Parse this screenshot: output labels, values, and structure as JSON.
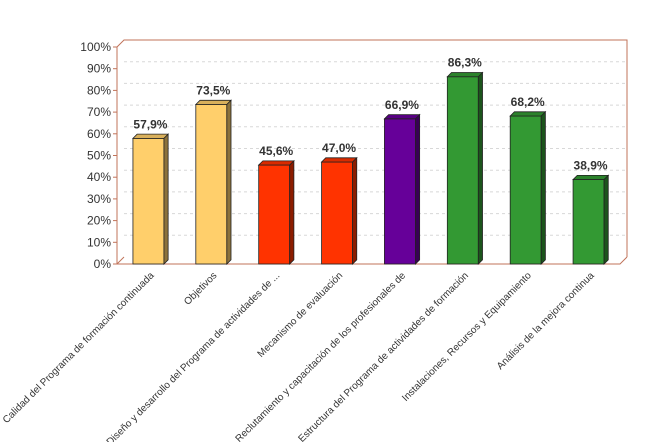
{
  "chart_data": {
    "type": "bar",
    "title": "",
    "xlabel": "",
    "ylabel": "",
    "ylim": [
      0,
      100
    ],
    "yticks": [
      "0%",
      "10%",
      "20%",
      "30%",
      "40%",
      "50%",
      "60%",
      "70%",
      "80%",
      "90%",
      "100%"
    ],
    "grid": true,
    "categories": [
      "Calidad del Programa de formación continuada",
      "Objetivos",
      "Diseño y desarrollo del Programa de actividades de ...",
      "Mecanismo de evaluación",
      "Reclutamiento y capacitación de los profesionales de",
      "Estructura del Programa de actividades de formación",
      "Instalaciones, Recursos y Equipamiento",
      "Análisis de la mejora continua"
    ],
    "values": [
      57.9,
      73.5,
      45.6,
      47.0,
      66.9,
      86.3,
      68.2,
      38.9
    ],
    "value_labels": [
      "57,9%",
      "73,5%",
      "45,6%",
      "47,0%",
      "66,9%",
      "86,3%",
      "68,2%",
      "38,9%"
    ],
    "colors": [
      "#ffcf6b",
      "#ffcf6b",
      "#ff3300",
      "#ff3300",
      "#660099",
      "#339933",
      "#339933",
      "#339933"
    ]
  }
}
